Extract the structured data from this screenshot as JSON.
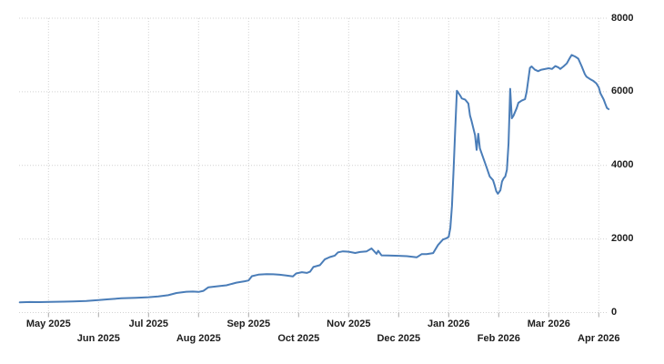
{
  "chart_style": {
    "background": "#ffffff",
    "line_color": "#4a7db8",
    "grid_color": "#d2d2d2",
    "tick_color": "#a8a8a8",
    "label_color": "#1d1d1d"
  },
  "x_axis": {
    "labels": [
      {
        "text": "May 2025",
        "row": 1
      },
      {
        "text": "Jun 2025",
        "row": 2
      },
      {
        "text": "Jul 2025",
        "row": 1
      },
      {
        "text": "Aug 2025",
        "row": 2
      },
      {
        "text": "Sep 2025",
        "row": 1
      },
      {
        "text": "Oct 2025",
        "row": 2
      },
      {
        "text": "Nov 2025",
        "row": 1
      },
      {
        "text": "Dec 2025",
        "row": 2
      },
      {
        "text": "Jan 2026",
        "row": 1
      },
      {
        "text": "Feb 2026",
        "row": 2
      },
      {
        "text": "Mar 2026",
        "row": 1
      },
      {
        "text": "Apr 2026",
        "row": 2
      }
    ]
  },
  "y_axis": {
    "side": "right",
    "ticks": [
      {
        "value": 0,
        "label": "0"
      },
      {
        "value": 2000,
        "label": "2000"
      },
      {
        "value": 4000,
        "label": "4000"
      },
      {
        "value": 6000,
        "label": "6000"
      },
      {
        "value": 8000,
        "label": "8000"
      }
    ]
  },
  "chart_data": {
    "type": "line",
    "title": "",
    "xlabel": "",
    "ylabel": "",
    "ylim": [
      0,
      8000
    ],
    "grid": "dotted",
    "legend": "none",
    "y_axis_position": "right",
    "x_range": [
      "2025-04-14",
      "2026-04-07"
    ],
    "series": [
      {
        "name": "value",
        "color": "#4a7db8",
        "points": [
          [
            "2025-04-14",
            280
          ],
          [
            "2025-04-20",
            288
          ],
          [
            "2025-04-26",
            284
          ],
          [
            "2025-05-02",
            290
          ],
          [
            "2025-05-10",
            296
          ],
          [
            "2025-05-16",
            304
          ],
          [
            "2025-05-24",
            315
          ],
          [
            "2025-06-01",
            338
          ],
          [
            "2025-06-07",
            360
          ],
          [
            "2025-06-15",
            388
          ],
          [
            "2025-06-24",
            404
          ],
          [
            "2025-07-01",
            418
          ],
          [
            "2025-07-07",
            438
          ],
          [
            "2025-07-13",
            472
          ],
          [
            "2025-07-18",
            532
          ],
          [
            "2025-07-24",
            566
          ],
          [
            "2025-07-28",
            572
          ],
          [
            "2025-08-01",
            562
          ],
          [
            "2025-08-04",
            592
          ],
          [
            "2025-08-07",
            688
          ],
          [
            "2025-08-13",
            716
          ],
          [
            "2025-08-18",
            742
          ],
          [
            "2025-08-24",
            814
          ],
          [
            "2025-08-29",
            850
          ],
          [
            "2025-09-01",
            872
          ],
          [
            "2025-09-03",
            988
          ],
          [
            "2025-09-07",
            1030
          ],
          [
            "2025-09-12",
            1046
          ],
          [
            "2025-09-16",
            1040
          ],
          [
            "2025-09-20",
            1028
          ],
          [
            "2025-09-24",
            1008
          ],
          [
            "2025-09-28",
            984
          ],
          [
            "2025-09-30",
            1064
          ],
          [
            "2025-10-03",
            1098
          ],
          [
            "2025-10-06",
            1078
          ],
          [
            "2025-10-08",
            1110
          ],
          [
            "2025-10-10",
            1238
          ],
          [
            "2025-10-14",
            1288
          ],
          [
            "2025-10-17",
            1448
          ],
          [
            "2025-10-20",
            1508
          ],
          [
            "2025-10-23",
            1548
          ],
          [
            "2025-10-25",
            1638
          ],
          [
            "2025-10-28",
            1664
          ],
          [
            "2025-11-01",
            1654
          ],
          [
            "2025-11-05",
            1620
          ],
          [
            "2025-11-08",
            1648
          ],
          [
            "2025-11-12",
            1664
          ],
          [
            "2025-11-15",
            1744
          ],
          [
            "2025-11-18",
            1598
          ],
          [
            "2025-11-19",
            1678
          ],
          [
            "2025-11-21",
            1556
          ],
          [
            "2025-11-25",
            1550
          ],
          [
            "2025-12-01",
            1544
          ],
          [
            "2025-12-06",
            1534
          ],
          [
            "2025-12-12",
            1500
          ],
          [
            "2025-12-15",
            1588
          ],
          [
            "2025-12-18",
            1590
          ],
          [
            "2025-12-22",
            1618
          ],
          [
            "2025-12-25",
            1838
          ],
          [
            "2025-12-28",
            1986
          ],
          [
            "2025-12-30",
            2018
          ],
          [
            "2026-01-01",
            2058
          ],
          [
            "2026-01-02",
            2300
          ],
          [
            "2026-01-03",
            2900
          ],
          [
            "2026-01-04",
            3900
          ],
          [
            "2026-01-05",
            5000
          ],
          [
            "2026-01-06",
            6030
          ],
          [
            "2026-01-08",
            5900
          ],
          [
            "2026-01-09",
            5820
          ],
          [
            "2026-01-11",
            5790
          ],
          [
            "2026-01-13",
            5680
          ],
          [
            "2026-01-14",
            5360
          ],
          [
            "2026-01-15",
            5200
          ],
          [
            "2026-01-17",
            4830
          ],
          [
            "2026-01-18",
            4420
          ],
          [
            "2026-01-19",
            4860
          ],
          [
            "2026-01-20",
            4460
          ],
          [
            "2026-01-22",
            4210
          ],
          [
            "2026-01-24",
            3960
          ],
          [
            "2026-01-26",
            3700
          ],
          [
            "2026-01-28",
            3600
          ],
          [
            "2026-01-29",
            3460
          ],
          [
            "2026-01-30",
            3300
          ],
          [
            "2026-01-31",
            3230
          ],
          [
            "2026-02-02",
            3320
          ],
          [
            "2026-02-03",
            3560
          ],
          [
            "2026-02-04",
            3650
          ],
          [
            "2026-02-05",
            3700
          ],
          [
            "2026-02-06",
            3880
          ],
          [
            "2026-02-07",
            4600
          ],
          [
            "2026-02-08",
            6080
          ],
          [
            "2026-02-09",
            5280
          ],
          [
            "2026-02-10",
            5350
          ],
          [
            "2026-02-12",
            5560
          ],
          [
            "2026-02-13",
            5700
          ],
          [
            "2026-02-15",
            5760
          ],
          [
            "2026-02-17",
            5800
          ],
          [
            "2026-02-18",
            6000
          ],
          [
            "2026-02-20",
            6650
          ],
          [
            "2026-02-21",
            6690
          ],
          [
            "2026-02-23",
            6600
          ],
          [
            "2026-02-25",
            6560
          ],
          [
            "2026-02-27",
            6600
          ],
          [
            "2026-03-01",
            6640
          ],
          [
            "2026-03-03",
            6620
          ],
          [
            "2026-03-05",
            6700
          ],
          [
            "2026-03-07",
            6660
          ],
          [
            "2026-03-08",
            6620
          ],
          [
            "2026-03-10",
            6690
          ],
          [
            "2026-03-12",
            6770
          ],
          [
            "2026-03-14",
            6930
          ],
          [
            "2026-03-15",
            7000
          ],
          [
            "2026-03-17",
            6960
          ],
          [
            "2026-03-19",
            6900
          ],
          [
            "2026-03-21",
            6700
          ],
          [
            "2026-03-23",
            6480
          ],
          [
            "2026-03-24",
            6410
          ],
          [
            "2026-03-26",
            6350
          ],
          [
            "2026-03-28",
            6300
          ],
          [
            "2026-03-30",
            6230
          ],
          [
            "2026-04-01",
            6120
          ],
          [
            "2026-04-02",
            5960
          ],
          [
            "2026-04-04",
            5790
          ],
          [
            "2026-04-05",
            5670
          ],
          [
            "2026-04-06",
            5560
          ],
          [
            "2026-04-07",
            5530
          ]
        ]
      }
    ]
  }
}
